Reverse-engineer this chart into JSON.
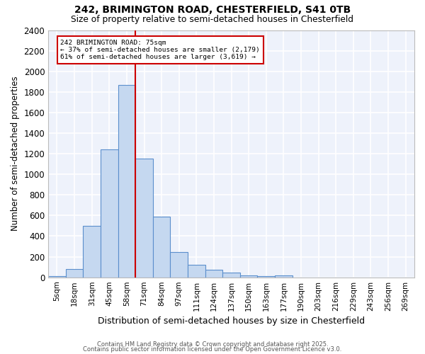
{
  "title1": "242, BRIMINGTON ROAD, CHESTERFIELD, S41 0TB",
  "title2": "Size of property relative to semi-detached houses in Chesterfield",
  "xlabel": "Distribution of semi-detached houses by size in Chesterfield",
  "ylabel": "Number of semi-detached properties",
  "categories": [
    "5sqm",
    "18sqm",
    "31sqm",
    "45sqm",
    "58sqm",
    "71sqm",
    "84sqm",
    "97sqm",
    "111sqm",
    "124sqm",
    "137sqm",
    "150sqm",
    "163sqm",
    "177sqm",
    "190sqm",
    "203sqm",
    "216sqm",
    "229sqm",
    "243sqm",
    "256sqm",
    "269sqm"
  ],
  "values": [
    10,
    80,
    500,
    1240,
    1870,
    1150,
    590,
    245,
    120,
    75,
    45,
    18,
    10,
    18,
    0,
    0,
    0,
    0,
    0,
    0,
    0
  ],
  "bar_color": "#c5d8f0",
  "bar_edge_color": "#5b8fcc",
  "background_color": "#eef2fb",
  "grid_color": "#ffffff",
  "vline_idx": 4.5,
  "vline_color": "#cc0000",
  "annotation_text": "242 BRIMINGTON ROAD: 75sqm\n← 37% of semi-detached houses are smaller (2,179)\n61% of semi-detached houses are larger (3,619) →",
  "annotation_box_color": "#ffffff",
  "annotation_box_edge": "#cc0000",
  "ylim": [
    0,
    2400
  ],
  "yticks": [
    0,
    200,
    400,
    600,
    800,
    1000,
    1200,
    1400,
    1600,
    1800,
    2000,
    2200,
    2400
  ],
  "footer1": "Contains HM Land Registry data © Crown copyright and database right 2025.",
  "footer2": "Contains public sector information licensed under the Open Government Licence v3.0."
}
